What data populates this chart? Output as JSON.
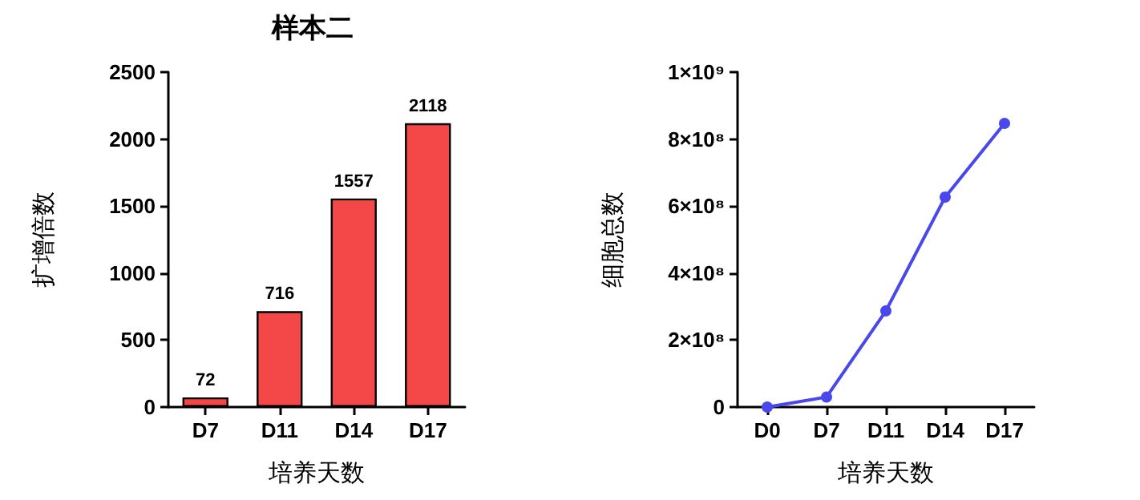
{
  "chart_data": [
    {
      "type": "bar",
      "title": "样本二",
      "xlabel": "培养天数",
      "ylabel": "扩增倍数",
      "categories": [
        "D7",
        "D11",
        "D14",
        "D17"
      ],
      "values": [
        72,
        716,
        1557,
        2118
      ],
      "color": "#f44848",
      "ylim": [
        0,
        2500
      ],
      "yticks": [
        0,
        500,
        1000,
        1500,
        2000,
        2500
      ],
      "data_labels": true,
      "grid": false
    },
    {
      "type": "line",
      "xlabel": "培养天数",
      "ylabel": "细胞总数",
      "categories": [
        "D0",
        "D7",
        "D11",
        "D14",
        "D17"
      ],
      "series": [
        {
          "color": "#4848ec",
          "values": [
            0,
            30000000,
            287000000,
            627000000,
            847000000
          ]
        }
      ],
      "ylim": [
        0,
        1000000000
      ],
      "yticks": [
        0,
        {
          "value": 200000000,
          "label": "2×10⁸"
        },
        {
          "value": 400000000,
          "label": "4×10⁸"
        },
        {
          "value": 600000000,
          "label": "6×10⁸"
        },
        {
          "value": 800000000,
          "label": "8×10⁸"
        },
        {
          "value": 1000000000,
          "label": "1×10⁹"
        }
      ],
      "marker": "circle",
      "line_style": "solid",
      "grid": false
    }
  ]
}
